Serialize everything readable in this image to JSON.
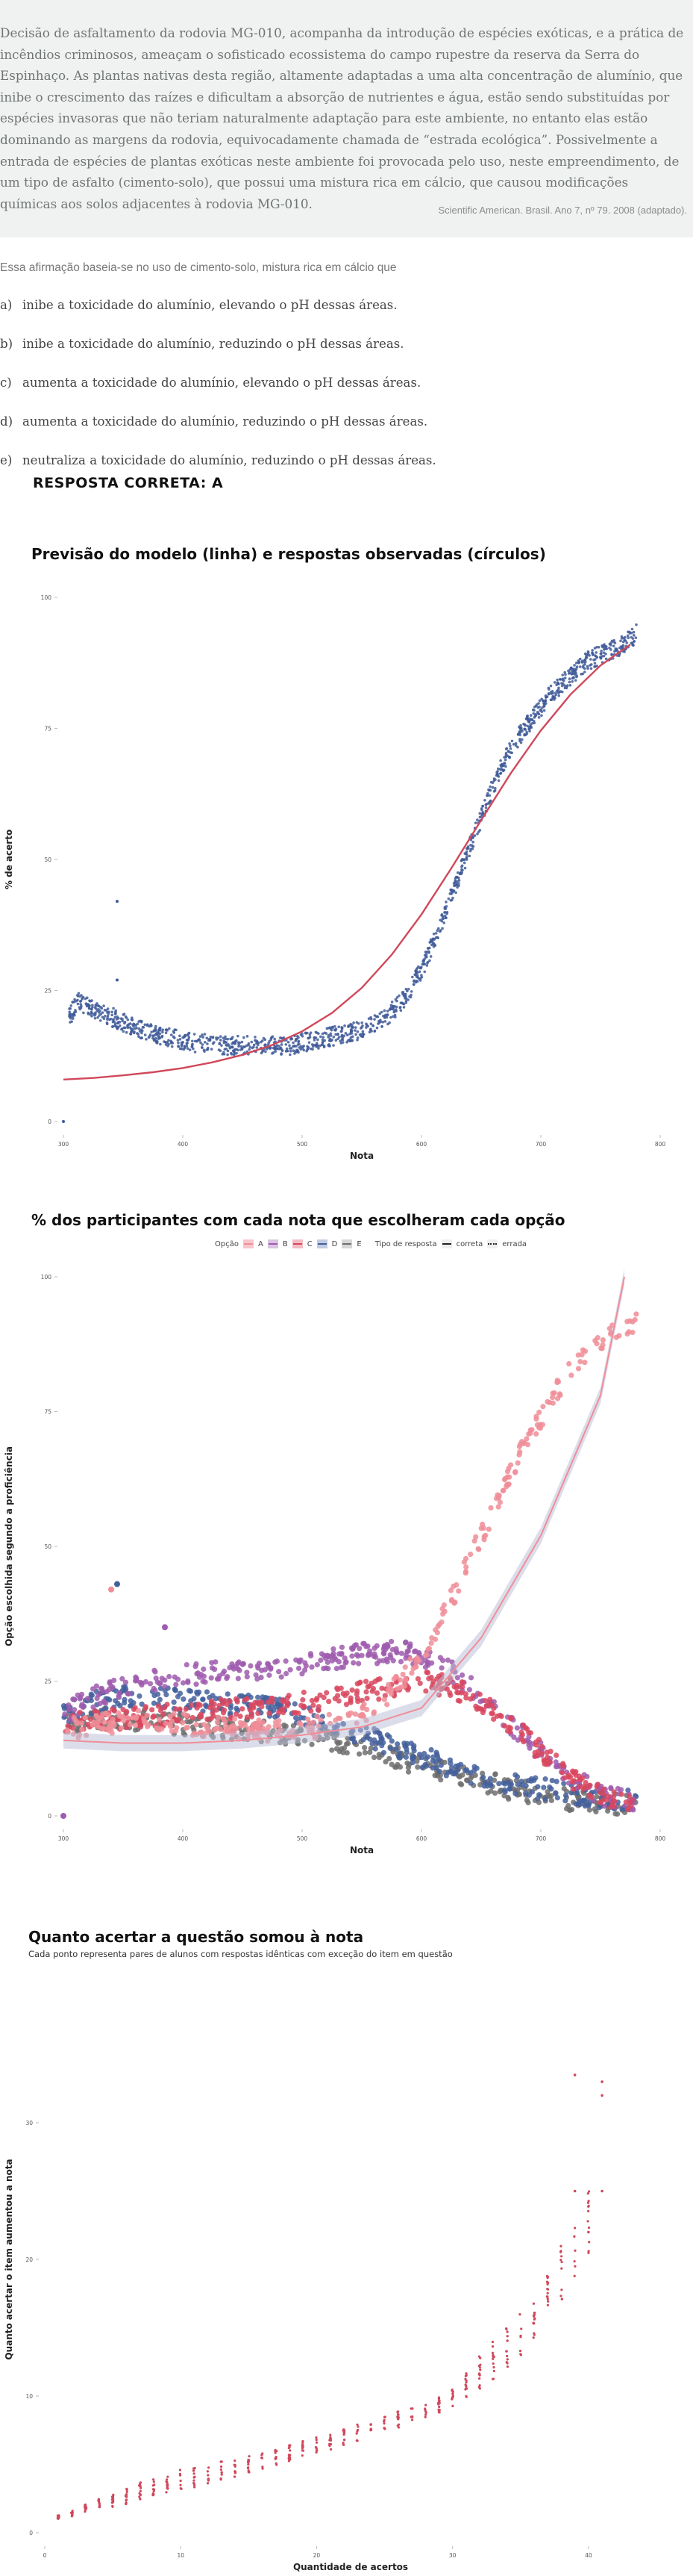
{
  "passage": {
    "text": "Decisão de asfaltamento da rodovia MG-010, acompanha da introdução de espécies exóticas, e a prática de incêndios criminosos, ameaçam o sofisticado ecossistema do campo rupestre da reserva da Serra do Espinhaço. As plantas nativas desta região, altamente adaptadas a uma alta concentração de alumínio, que inibe o crescimento das raízes e dificultam a absorção de nutrientes e água, estão sendo substituídas por espécies invasoras que não teriam naturalmente adaptação para este ambiente, no entanto elas estão dominando as margens da rodovia, equivocadamente chamada de “estrada ecológica”. Possivelmente a entrada de espécies de plantas exóticas neste ambiente foi provocada pelo uso, neste empreendimento, de um tipo de asfalto (cimento-solo), que possui uma mistura rica em cálcio, que causou modificações químicas aos solos adjacentes à rodovia MG-010.",
    "source": "Scientific American. Brasil. Ano 7, nº 79. 2008 (adaptado)."
  },
  "question": {
    "stem": "Essa afirmação baseia-se no uso de cimento-solo, mistura rica em cálcio que",
    "alternatives": [
      {
        "letter": "a)",
        "text": "inibe a toxicidade do alumínio, elevando o pH dessas áreas."
      },
      {
        "letter": "b)",
        "text": "inibe a toxicidade do alumínio, reduzindo o pH dessas áreas."
      },
      {
        "letter": "c)",
        "text": "aumenta a toxicidade do alumínio, elevando o pH dessas áreas."
      },
      {
        "letter": "d)",
        "text": "aumenta a toxicidade do alumínio, reduzindo o pH dessas áreas."
      },
      {
        "letter": "e)",
        "text": "neutraliza a toxicidade do alumínio, reduzindo o pH dessas áreas."
      }
    ],
    "answer_label": "RESPOSTA CORRETA: A"
  },
  "colors": {
    "point_blue": "#3f5a99",
    "curve_red": "#d0485b",
    "opt_A": "#f08d98",
    "opt_B": "#9f5cae",
    "opt_C": "#d9475e",
    "opt_D": "#44609c",
    "opt_E": "#6f6f6f",
    "band": "#b8bdd6"
  },
  "chart_data": [
    {
      "type": "scatter",
      "title": "Previsão do modelo (linha) e respostas observadas (círculos)",
      "xlabel": "Nota",
      "ylabel": "% de acerto",
      "xlim": [
        300,
        800
      ],
      "ylim": [
        0,
        100
      ],
      "x_ticks": [
        300,
        400,
        500,
        600,
        700,
        800
      ],
      "y_ticks": [
        0,
        25,
        50,
        75,
        100
      ],
      "grid": false,
      "observed": {
        "x": [
          300,
          305,
          312,
          320,
          330,
          340,
          350,
          360,
          370,
          380,
          390,
          400,
          410,
          420,
          430,
          440,
          450,
          460,
          470,
          480,
          490,
          500,
          510,
          520,
          530,
          540,
          550,
          560,
          570,
          580,
          590,
          600,
          610,
          620,
          630,
          640,
          650,
          660,
          670,
          680,
          690,
          700,
          710,
          720,
          730,
          740,
          750,
          760,
          770,
          780
        ],
        "y": [
          12,
          20,
          23,
          22,
          21,
          20,
          19,
          18,
          17,
          16.5,
          16,
          15.5,
          15,
          15,
          14.5,
          14.5,
          14.5,
          14.5,
          14.5,
          14.5,
          14.5,
          15,
          15.5,
          16,
          16.5,
          17,
          17.5,
          18.5,
          20,
          22,
          25,
          29,
          34,
          40,
          46,
          52,
          58,
          64,
          69,
          73,
          76,
          79,
          82,
          84,
          86,
          88,
          89,
          90,
          91,
          93
        ]
      },
      "outliers": [
        {
          "x": 300,
          "y": 0
        },
        {
          "x": 345,
          "y": 42
        },
        {
          "x": 345,
          "y": 27
        }
      ],
      "model": {
        "x": [
          300,
          325,
          350,
          375,
          400,
          425,
          450,
          475,
          500,
          525,
          550,
          575,
          600,
          625,
          650,
          675,
          700,
          725,
          750,
          775
        ],
        "y": [
          8,
          8.3,
          8.8,
          9.4,
          10.2,
          11.3,
          12.7,
          14.6,
          17.2,
          20.7,
          25.5,
          31.8,
          39.5,
          48.3,
          57.5,
          66.5,
          74.6,
          81.5,
          87,
          91
        ]
      }
    },
    {
      "type": "scatter",
      "title": "% dos participantes com cada nota que escolheram cada opção",
      "xlabel": "Nota",
      "ylabel": "Opção escolhida segundo a proficiência",
      "xlim": [
        300,
        800
      ],
      "ylim": [
        0,
        100
      ],
      "x_ticks": [
        300,
        400,
        500,
        600,
        700,
        800
      ],
      "y_ticks": [
        0,
        25,
        50,
        75,
        100
      ],
      "legend": {
        "opcao_label": "Opção",
        "tipo_label": "Tipo de resposta",
        "options": [
          "A",
          "B",
          "C",
          "D",
          "E"
        ],
        "types": [
          "correta",
          "errada"
        ]
      },
      "x": [
        300,
        325,
        350,
        375,
        400,
        425,
        450,
        475,
        500,
        525,
        550,
        575,
        600,
        625,
        650,
        675,
        700,
        725,
        750,
        775,
        780
      ],
      "series": [
        {
          "name": "A",
          "type": "correta",
          "values": [
            16,
            17,
            17.5,
            17.5,
            17,
            16.5,
            16,
            15.8,
            16,
            17,
            19,
            23,
            30,
            40,
            52,
            64,
            74,
            83,
            88,
            91,
            92
          ]
        },
        {
          "name": "B",
          "type": "errada",
          "values": [
            19,
            22,
            24,
            25,
            26,
            26.5,
            27,
            27.5,
            28,
            29,
            30,
            30.5,
            30,
            27,
            22,
            17,
            12,
            7,
            4,
            2.5,
            2
          ]
        },
        {
          "name": "C",
          "type": "errada",
          "values": [
            17,
            17.5,
            18,
            18.5,
            19,
            19.5,
            20,
            20.5,
            21,
            22,
            23,
            24,
            25,
            24,
            21,
            17,
            12,
            7,
            4,
            2.5,
            2
          ]
        },
        {
          "name": "D",
          "type": "errada",
          "values": [
            19,
            21,
            22,
            22,
            21.5,
            21,
            20.5,
            20,
            19,
            17,
            15,
            13,
            11,
            9,
            7.5,
            6,
            5,
            4,
            3.5,
            3,
            3
          ]
        },
        {
          "name": "E",
          "type": "errada",
          "values": [
            17,
            18,
            18,
            17.5,
            17,
            16.5,
            16,
            15.5,
            15,
            14,
            13,
            11,
            9.5,
            8,
            6.5,
            5,
            4,
            3,
            2.5,
            2,
            2
          ]
        }
      ],
      "band_line": {
        "x": [
          300,
          350,
          400,
          450,
          500,
          550,
          600,
          650,
          700,
          750,
          770
        ],
        "y": [
          14,
          13.5,
          13.5,
          14,
          15,
          16.5,
          20,
          33,
          52,
          78,
          100
        ]
      },
      "outliers": [
        {
          "x": 345,
          "y": 43,
          "series": "D"
        },
        {
          "x": 340,
          "y": 42,
          "series": "A"
        },
        {
          "x": 385,
          "y": 35,
          "series": "B"
        },
        {
          "x": 300,
          "y": 0,
          "series": "B"
        }
      ]
    },
    {
      "type": "scatter",
      "title": "Quanto acertar a questão somou à nota",
      "subtitle": "Cada ponto representa pares de alunos com respostas idênticas com exceção do item em questão",
      "xlabel": "Quantidade de acertos",
      "ylabel": "Quanto acertar o item aumentou a nota",
      "xlim": [
        0,
        45
      ],
      "ylim": [
        0,
        40
      ],
      "x_ticks": [
        0,
        10,
        20,
        30,
        40
      ],
      "y_ticks": [
        0,
        10,
        20,
        30
      ],
      "points": {
        "x": [
          1,
          2,
          3,
          4,
          5,
          6,
          7,
          8,
          9,
          10,
          11,
          12,
          13,
          14,
          15,
          16,
          17,
          18,
          19,
          20,
          21,
          22,
          23,
          24,
          25,
          26,
          27,
          28,
          29,
          30,
          31,
          32,
          33,
          34,
          35,
          36,
          37,
          38,
          39,
          40
        ],
        "y_min": [
          1,
          1.2,
          1.5,
          1.7,
          1.9,
          2.1,
          2.4,
          2.6,
          2.8,
          3,
          3.3,
          3.5,
          3.8,
          4,
          4.3,
          4.6,
          4.9,
          5.2,
          5.5,
          5.8,
          6.1,
          6.4,
          6.7,
          7,
          7.3,
          7.7,
          8,
          8.4,
          8.8,
          9.2,
          9.8,
          10.5,
          11.2,
          12,
          13,
          14,
          15.5,
          17,
          18.5,
          20
        ],
        "y_max": [
          1.3,
          1.7,
          2.1,
          2.5,
          2.9,
          3.3,
          3.7,
          4,
          4.3,
          4.6,
          4.8,
          5,
          5.2,
          5.4,
          5.6,
          5.9,
          6.1,
          6.4,
          6.7,
          7,
          7.3,
          7.6,
          8,
          8.3,
          8.7,
          9,
          9.3,
          9.6,
          10,
          11,
          12,
          13,
          14,
          15,
          16,
          17,
          19,
          21,
          23,
          25
        ]
      },
      "outliers": [
        {
          "x": 39,
          "y": 33.5
        },
        {
          "x": 41,
          "y": 33
        },
        {
          "x": 41,
          "y": 32
        },
        {
          "x": 39,
          "y": 25
        },
        {
          "x": 41,
          "y": 25
        },
        {
          "x": 40,
          "y": 22
        }
      ]
    }
  ]
}
